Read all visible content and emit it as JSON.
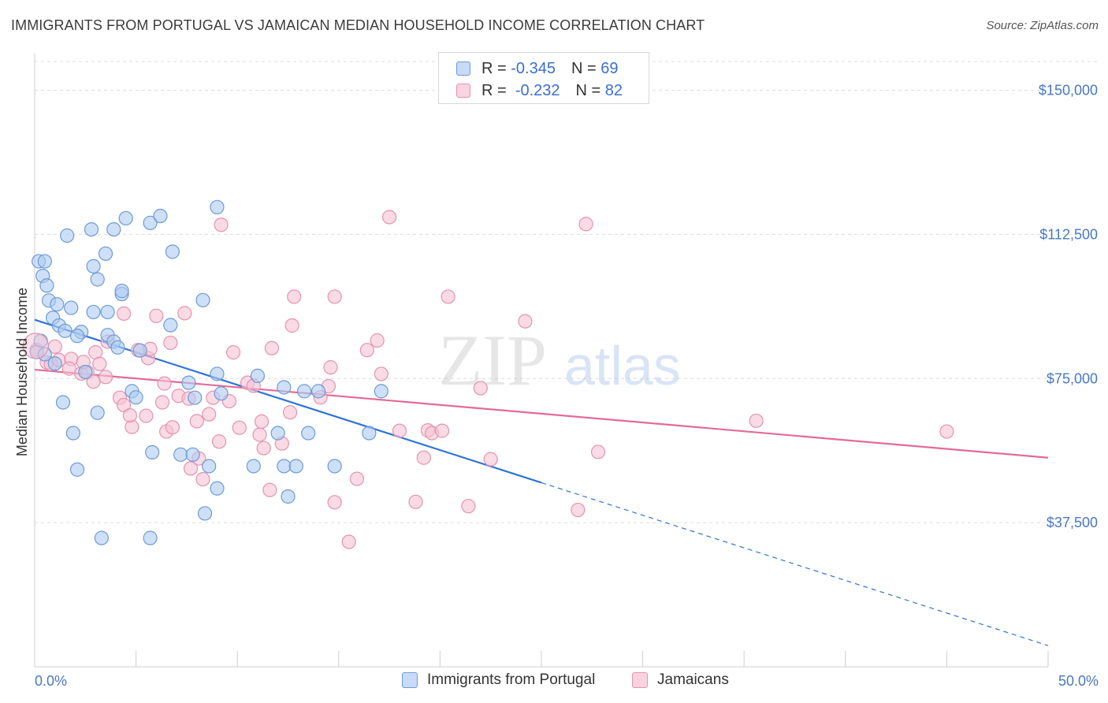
{
  "title": "IMMIGRANTS FROM PORTUGAL VS JAMAICAN MEDIAN HOUSEHOLD INCOME CORRELATION CHART",
  "source": "Source: ZipAtlas.com",
  "watermark": {
    "zip": "ZIP",
    "atlas": "atlas"
  },
  "colors": {
    "blue_fill": "#aecbf1",
    "blue_stroke": "#6d9ad9",
    "blue_line": "#2f74d6",
    "pink_fill": "#f7c3d3",
    "pink_stroke": "#e592b0",
    "pink_line": "#e46a98",
    "tick_text": "#4a78c4",
    "grid": "#dcdcdc"
  },
  "legend": {
    "rows": [
      {
        "r_label": "R =",
        "r_value": "-0.345",
        "n_label": "N =",
        "n_value": "69",
        "series": "blue"
      },
      {
        "r_label": "R =",
        "r_value": "-0.232",
        "n_label": "N =",
        "n_value": "82",
        "series": "pink"
      }
    ]
  },
  "bottom_legend": {
    "blue": "Immigrants from Portugal",
    "pink": "Jamaicans"
  },
  "chart_data": {
    "type": "scatter",
    "title": "IMMIGRANTS FROM PORTUGAL VS JAMAICAN MEDIAN HOUSEHOLD INCOME CORRELATION CHART",
    "xlabel": "",
    "ylabel": "Median Household Income",
    "xlim": [
      0,
      50
    ],
    "ylim": [
      0,
      157500
    ],
    "x_tick_labels": [
      "0.0%",
      "50.0%"
    ],
    "y_ticks": [
      37500,
      75000,
      112500,
      150000
    ],
    "y_tick_labels": [
      "$37,500",
      "$75,000",
      "$112,500",
      "$150,000"
    ],
    "grid": true,
    "series": [
      {
        "name": "Immigrants from Portugal",
        "color": "blue",
        "trend": {
          "x": [
            0,
            25
          ],
          "y": [
            90300,
            47900
          ],
          "dashed_to": [
            50,
            5500
          ]
        },
        "points": [
          [
            0.2,
            105500
          ],
          [
            0.5,
            105500
          ],
          [
            0.4,
            101700
          ],
          [
            0.6,
            99200
          ],
          [
            0.7,
            95300
          ],
          [
            1.1,
            94300
          ],
          [
            0.9,
            90800
          ],
          [
            1.8,
            93400
          ],
          [
            2.9,
            92300
          ],
          [
            3.6,
            92300
          ],
          [
            1.2,
            88800
          ],
          [
            1.5,
            87400
          ],
          [
            2.3,
            87100
          ],
          [
            2.1,
            86100
          ],
          [
            3.6,
            86300
          ],
          [
            3.9,
            84600
          ],
          [
            0.3,
            84800
          ],
          [
            0.1,
            81900
          ],
          [
            1.0,
            78900
          ],
          [
            4.1,
            83100
          ],
          [
            5.2,
            82300
          ],
          [
            2.5,
            76700
          ],
          [
            7.6,
            73900
          ],
          [
            9.0,
            76200
          ],
          [
            11.0,
            75700
          ],
          [
            12.3,
            72700
          ],
          [
            13.3,
            71700
          ],
          [
            14.0,
            71700
          ],
          [
            17.1,
            71700
          ],
          [
            4.8,
            71700
          ],
          [
            9.2,
            71100
          ],
          [
            5.0,
            70100
          ],
          [
            7.9,
            70000
          ],
          [
            1.4,
            68800
          ],
          [
            3.1,
            66100
          ],
          [
            1.9,
            60800
          ],
          [
            12.0,
            60800
          ],
          [
            13.5,
            60800
          ],
          [
            16.5,
            60800
          ],
          [
            5.8,
            55800
          ],
          [
            7.2,
            55200
          ],
          [
            7.8,
            55200
          ],
          [
            8.6,
            52200
          ],
          [
            10.8,
            52200
          ],
          [
            12.3,
            52200
          ],
          [
            12.9,
            52200
          ],
          [
            14.8,
            52200
          ],
          [
            2.1,
            51300
          ],
          [
            9.0,
            46400
          ],
          [
            12.5,
            44300
          ],
          [
            3.3,
            33500
          ],
          [
            5.7,
            33500
          ],
          [
            8.4,
            39900
          ],
          [
            0.5,
            81300
          ],
          [
            2.9,
            104200
          ],
          [
            3.5,
            107500
          ],
          [
            5.7,
            115500
          ],
          [
            1.6,
            112200
          ],
          [
            2.8,
            113800
          ],
          [
            3.9,
            113800
          ],
          [
            4.5,
            116700
          ],
          [
            6.2,
            117300
          ],
          [
            9.0,
            119600
          ],
          [
            6.8,
            108000
          ],
          [
            3.1,
            100800
          ],
          [
            4.3,
            97000
          ],
          [
            4.3,
            97800
          ],
          [
            6.7,
            88900
          ],
          [
            8.3,
            95400
          ]
        ]
      },
      {
        "name": "Jamaicans",
        "color": "pink",
        "trend": {
          "x": [
            0,
            50
          ],
          "y": [
            77300,
            54400
          ]
        },
        "points": [
          [
            0.1,
            82500
          ],
          [
            0.6,
            79200
          ],
          [
            0.8,
            78800
          ],
          [
            1.2,
            79800
          ],
          [
            1.8,
            80100
          ],
          [
            1.7,
            77600
          ],
          [
            2.3,
            76300
          ],
          [
            2.6,
            76600
          ],
          [
            2.9,
            74200
          ],
          [
            3.5,
            75400
          ],
          [
            3.0,
            81800
          ],
          [
            3.6,
            84600
          ],
          [
            3.2,
            78800
          ],
          [
            4.2,
            70000
          ],
          [
            4.4,
            68100
          ],
          [
            4.8,
            62400
          ],
          [
            4.7,
            65400
          ],
          [
            4.4,
            91900
          ],
          [
            5.1,
            82400
          ],
          [
            5.5,
            65300
          ],
          [
            5.6,
            80300
          ],
          [
            5.7,
            82700
          ],
          [
            6.0,
            91300
          ],
          [
            6.3,
            68800
          ],
          [
            6.4,
            73700
          ],
          [
            6.5,
            61200
          ],
          [
            6.7,
            84300
          ],
          [
            6.8,
            62300
          ],
          [
            7.1,
            70500
          ],
          [
            7.4,
            92000
          ],
          [
            7.6,
            69800
          ],
          [
            8.0,
            63900
          ],
          [
            8.1,
            54200
          ],
          [
            8.3,
            48800
          ],
          [
            8.6,
            65700
          ],
          [
            8.8,
            70000
          ],
          [
            9.1,
            58600
          ],
          [
            9.2,
            115000
          ],
          [
            9.6,
            69100
          ],
          [
            9.8,
            81800
          ],
          [
            10.1,
            62200
          ],
          [
            10.5,
            73900
          ],
          [
            10.8,
            73100
          ],
          [
            11.2,
            63800
          ],
          [
            11.3,
            56900
          ],
          [
            11.6,
            46000
          ],
          [
            11.7,
            82900
          ],
          [
            12.2,
            58100
          ],
          [
            12.6,
            66200
          ],
          [
            12.8,
            96300
          ],
          [
            12.7,
            88800
          ],
          [
            14.1,
            70100
          ],
          [
            14.5,
            73000
          ],
          [
            14.8,
            96300
          ],
          [
            14.8,
            42800
          ],
          [
            15.5,
            32500
          ],
          [
            15.9,
            48900
          ],
          [
            16.4,
            82400
          ],
          [
            16.9,
            84900
          ],
          [
            17.1,
            76200
          ],
          [
            17.5,
            117000
          ],
          [
            18.0,
            61400
          ],
          [
            18.8,
            42900
          ],
          [
            19.2,
            54400
          ],
          [
            19.4,
            61500
          ],
          [
            19.6,
            60800
          ],
          [
            20.1,
            61400
          ],
          [
            20.4,
            96300
          ],
          [
            21.4,
            41800
          ],
          [
            22.0,
            72500
          ],
          [
            22.5,
            54000
          ],
          [
            24.2,
            89900
          ],
          [
            26.8,
            40800
          ],
          [
            27.2,
            115200
          ],
          [
            27.8,
            55900
          ],
          [
            35.6,
            64000
          ],
          [
            45.0,
            61200
          ],
          [
            14.6,
            77900
          ],
          [
            2.4,
            79300
          ],
          [
            7.7,
            51600
          ],
          [
            11.1,
            60400
          ],
          [
            1.0,
            83300
          ]
        ]
      }
    ]
  }
}
